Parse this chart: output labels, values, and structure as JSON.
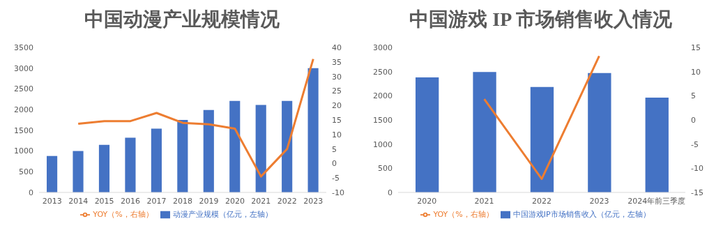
{
  "chart_data": [
    {
      "type": "bar",
      "title": "中国动漫产业规模情况",
      "categories": [
        "2013",
        "2014",
        "2015",
        "2016",
        "2017",
        "2018",
        "2019",
        "2020",
        "2021",
        "2022",
        "2023"
      ],
      "series": [
        {
          "name": "动漫产业规模（亿元，左轴）",
          "color": "#4472c4",
          "values": [
            880,
            1000,
            1150,
            1320,
            1540,
            1750,
            1990,
            2210,
            2110,
            2210,
            3000
          ]
        },
        {
          "name": "YOY（%，右轴）",
          "type": "line",
          "axis": "y2",
          "color": "#ed7d31",
          "values": [
            null,
            13.7,
            14.6,
            14.6,
            17.4,
            14.0,
            13.5,
            12.0,
            -4.5,
            5.0,
            36.0
          ]
        }
      ],
      "ylim": [
        0,
        3500
      ],
      "yticks": [
        0,
        500,
        1000,
        1500,
        2000,
        2500,
        3000,
        3500
      ],
      "y2lim": [
        -10,
        40
      ],
      "y2ticks": [
        -10,
        -5,
        0,
        5,
        10,
        15,
        20,
        25,
        30,
        35,
        40
      ],
      "grid": false,
      "legend": "bottom",
      "marker": "none"
    },
    {
      "type": "bar",
      "title": "中国游戏 IP 市场销售收入情况",
      "categories": [
        "2020",
        "2021",
        "2022",
        "2023",
        "2024年前三季度"
      ],
      "series": [
        {
          "name": "中国游戏IP市场销售收入（亿元，左轴）",
          "color": "#4472c4",
          "values": [
            2380,
            2490,
            2180,
            2470,
            1960
          ]
        },
        {
          "name": "YOY（%，右轴）",
          "type": "line",
          "axis": "y2",
          "color": "#ed7d31",
          "values": [
            null,
            4.3,
            -12.2,
            13.2,
            null
          ]
        }
      ],
      "ylim": [
        0,
        3000
      ],
      "yticks": [
        0,
        500,
        1000,
        1500,
        2000,
        2500,
        3000
      ],
      "y2lim": [
        -15,
        15
      ],
      "y2ticks": [
        -15,
        -10,
        -5,
        0,
        5,
        10,
        15
      ],
      "grid": false,
      "legend": "bottom",
      "marker": "none"
    }
  ]
}
